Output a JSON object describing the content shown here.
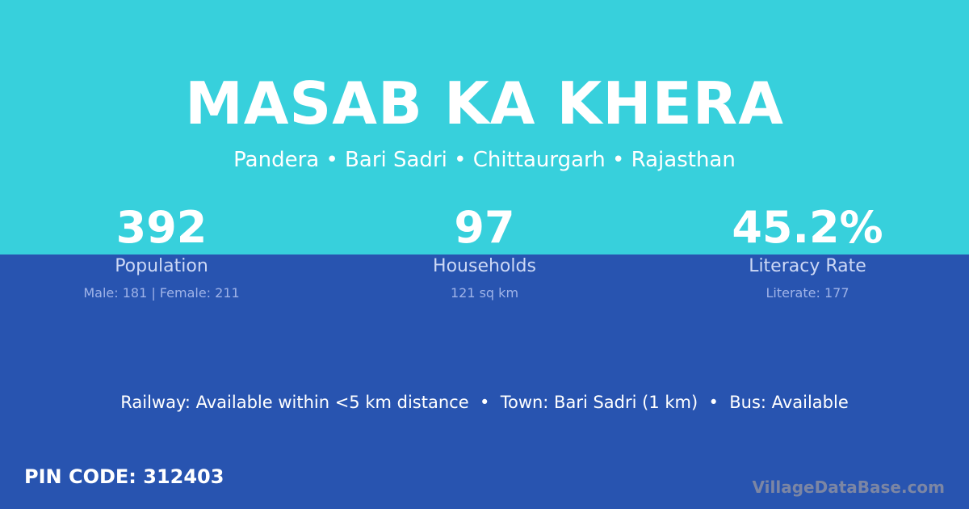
{
  "colors": {
    "top": "#37d0dc",
    "bottom": "#2854b0"
  },
  "title": "MASAB KA KHERA",
  "location": "Pandera • Bari Sadri • Chittaurgarh • Rajasthan",
  "stats": [
    {
      "value": "392",
      "label": "Population",
      "detail": "Male: 181 | Female: 211"
    },
    {
      "value": "97",
      "label": "Households",
      "detail": "121 sq km"
    },
    {
      "value": "45.2%",
      "label": "Literacy Rate",
      "detail": "Literate: 177"
    }
  ],
  "transport": "Railway: Available within <5 km distance  •  Town: Bari Sadri (1 km)  •  Bus: Available",
  "pin": "PIN CODE: 312403",
  "watermark": "VillageDataBase.com"
}
